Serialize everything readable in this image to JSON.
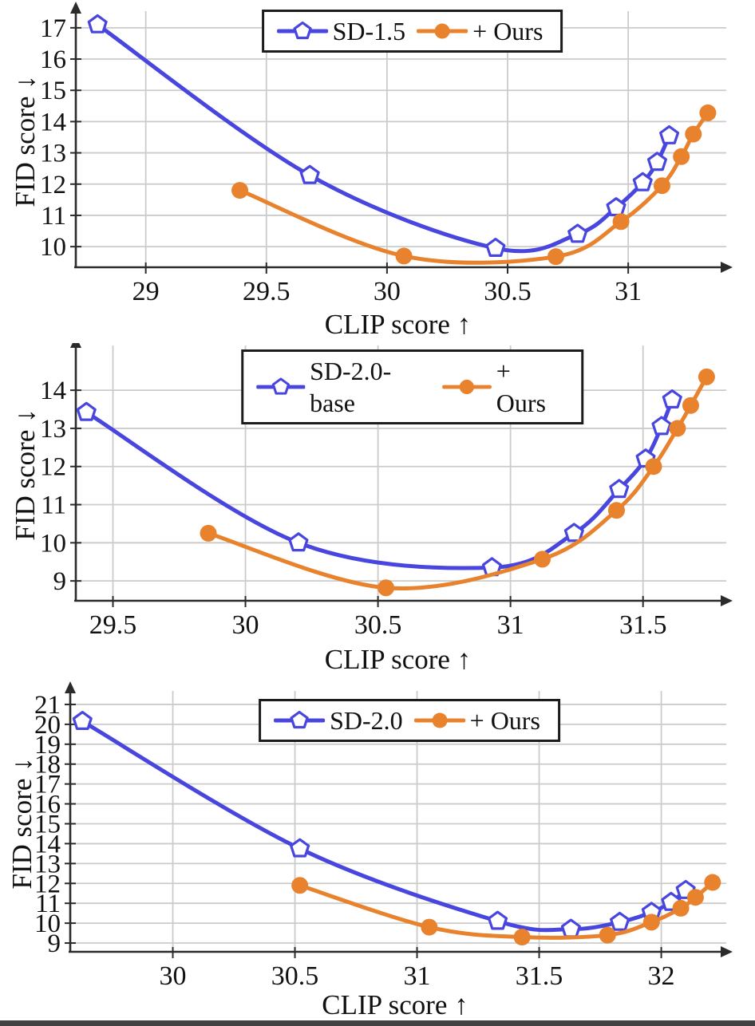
{
  "page": {
    "background": "#ffffff",
    "bottom_strip_color": "#424242"
  },
  "colors": {
    "sd_blue": "#4846DE",
    "ours_orange": "#E8822C",
    "grid": "#CBCBCB",
    "axis": "#2B2B2B",
    "legend_border": "#1C1C1C",
    "text": "#111111"
  },
  "chart_data": [
    {
      "id": "sd-1.5",
      "type": "line",
      "title": "",
      "xlabel": "CLIP score ↑",
      "ylabel": "FID score ↓",
      "xlim": [
        28.71,
        31.38
      ],
      "ylim": [
        9.34,
        17.43
      ],
      "xticks": [
        29,
        29.5,
        30,
        30.5,
        31
      ],
      "yticks": [
        10,
        11,
        12,
        13,
        14,
        15,
        16,
        17
      ],
      "grid": true,
      "legend_position": "top-center",
      "series": [
        {
          "name": "SD-1.5",
          "color": "#4846DE",
          "marker": "pentagon",
          "points": [
            [
              28.8,
              17.1
            ],
            [
              29.68,
              12.28
            ],
            [
              30.45,
              9.95
            ],
            [
              30.79,
              10.4
            ],
            [
              30.95,
              11.25
            ],
            [
              31.06,
              12.05
            ],
            [
              31.12,
              12.7
            ],
            [
              31.17,
              13.55
            ]
          ]
        },
        {
          "name": "+ Ours",
          "color": "#E8822C",
          "marker": "circle",
          "points": [
            [
              29.39,
              11.8
            ],
            [
              30.07,
              9.7
            ],
            [
              30.7,
              9.68
            ],
            [
              30.97,
              10.8
            ],
            [
              31.14,
              11.95
            ],
            [
              31.22,
              12.88
            ],
            [
              31.27,
              13.6
            ],
            [
              31.33,
              14.28
            ]
          ]
        }
      ]
    },
    {
      "id": "sd-2.0-base",
      "type": "line",
      "title": "",
      "xlabel": "CLIP score ↑",
      "ylabel": "FID score ↓",
      "xlim": [
        29.36,
        31.79
      ],
      "ylim": [
        8.48,
        15.09
      ],
      "xticks": [
        29.5,
        30,
        30.5,
        31,
        31.5
      ],
      "yticks": [
        9,
        10,
        11,
        12,
        13,
        14
      ],
      "grid": true,
      "legend_position": "top-center",
      "series": [
        {
          "name": "SD-2.0-base",
          "color": "#4846DE",
          "marker": "pentagon",
          "points": [
            [
              29.4,
              13.42
            ],
            [
              30.2,
              10.0
            ],
            [
              30.93,
              9.35
            ],
            [
              31.24,
              10.25
            ],
            [
              31.41,
              11.4
            ],
            [
              31.51,
              12.2
            ],
            [
              31.57,
              13.05
            ],
            [
              31.61,
              13.75
            ]
          ]
        },
        {
          "name": "+ Ours",
          "color": "#E8822C",
          "marker": "circle",
          "points": [
            [
              29.86,
              10.25
            ],
            [
              30.53,
              8.82
            ],
            [
              31.12,
              9.57
            ],
            [
              31.4,
              10.85
            ],
            [
              31.54,
              12.0
            ],
            [
              31.63,
              13.0
            ],
            [
              31.68,
              13.6
            ],
            [
              31.74,
              14.35
            ]
          ]
        }
      ]
    },
    {
      "id": "sd-2.0",
      "type": "line",
      "title": "",
      "xlabel": "CLIP score ↑",
      "ylabel": "FID score ↓",
      "xlim": [
        29.58,
        32.24
      ],
      "ylim": [
        8.56,
        21.52
      ],
      "xticks": [
        30,
        30.5,
        31,
        31.5,
        32
      ],
      "yticks": [
        9,
        10,
        11,
        12,
        13,
        14,
        15,
        16,
        17,
        18,
        19,
        20,
        21
      ],
      "grid": true,
      "legend_position": "top-center",
      "series": [
        {
          "name": "SD-2.0",
          "color": "#4846DE",
          "marker": "pentagon",
          "points": [
            [
              29.63,
              20.15
            ],
            [
              30.52,
              13.75
            ],
            [
              31.33,
              10.1
            ],
            [
              31.63,
              9.7
            ],
            [
              31.83,
              10.05
            ],
            [
              31.96,
              10.55
            ],
            [
              32.04,
              11.05
            ],
            [
              32.1,
              11.65
            ]
          ]
        },
        {
          "name": "+ Ours",
          "color": "#E8822C",
          "marker": "circle",
          "points": [
            [
              30.52,
              11.9
            ],
            [
              31.05,
              9.8
            ],
            [
              31.43,
              9.3
            ],
            [
              31.78,
              9.4
            ],
            [
              31.96,
              10.05
            ],
            [
              32.08,
              10.75
            ],
            [
              32.14,
              11.3
            ],
            [
              32.21,
              12.05
            ]
          ]
        }
      ]
    }
  ]
}
